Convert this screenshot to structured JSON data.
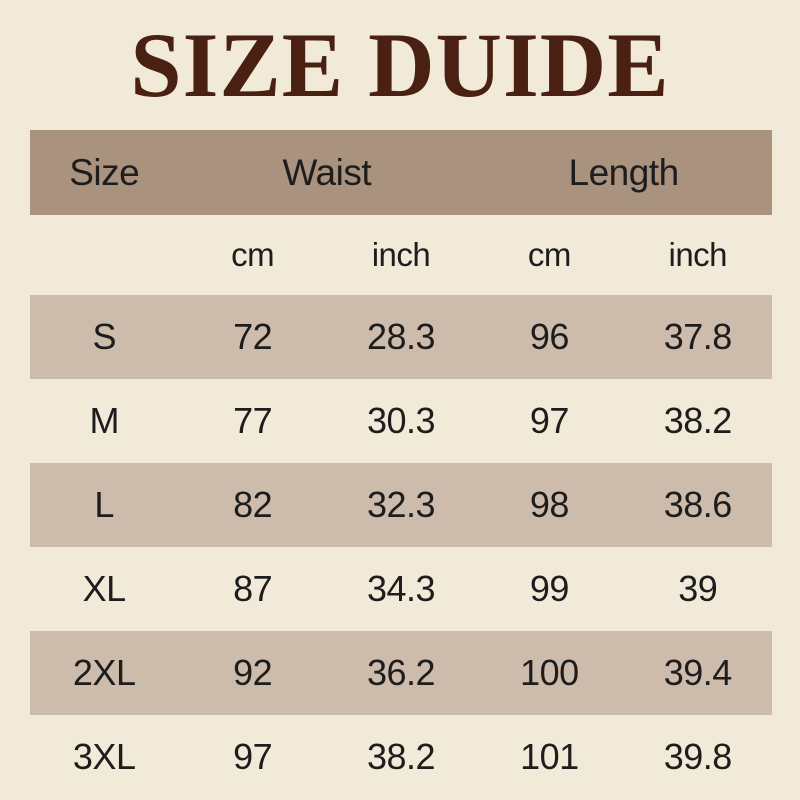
{
  "title": "SIZE DUIDE",
  "colors": {
    "page_bg": "#f2ead8",
    "header_bg": "#a9927e",
    "row_alt_bg": "#cdbcab",
    "title_color": "#4a2012",
    "text_color": "#1d1d1d"
  },
  "table": {
    "columns": {
      "size": "Size",
      "waist": "Waist",
      "length": "Length"
    },
    "units": {
      "waist_cm": "cm",
      "waist_inch": "inch",
      "length_cm": "cm",
      "length_inch": "inch"
    },
    "rows": [
      {
        "size": "S",
        "waist_cm": "72",
        "waist_inch": "28.3",
        "length_cm": "96",
        "length_inch": "37.8"
      },
      {
        "size": "M",
        "waist_cm": "77",
        "waist_inch": "30.3",
        "length_cm": "97",
        "length_inch": "38.2"
      },
      {
        "size": "L",
        "waist_cm": "82",
        "waist_inch": "32.3",
        "length_cm": "98",
        "length_inch": "38.6"
      },
      {
        "size": "XL",
        "waist_cm": "87",
        "waist_inch": "34.3",
        "length_cm": "99",
        "length_inch": "39"
      },
      {
        "size": "2XL",
        "waist_cm": "92",
        "waist_inch": "36.2",
        "length_cm": "100",
        "length_inch": "39.4"
      },
      {
        "size": "3XL",
        "waist_cm": "97",
        "waist_inch": "38.2",
        "length_cm": "101",
        "length_inch": "39.8"
      }
    ]
  },
  "chart_data": {
    "type": "table",
    "title": "SIZE DUIDE",
    "columns": [
      "Size",
      "Waist cm",
      "Waist inch",
      "Length cm",
      "Length inch"
    ],
    "rows": [
      [
        "S",
        72,
        28.3,
        96,
        37.8
      ],
      [
        "M",
        77,
        30.3,
        97,
        38.2
      ],
      [
        "L",
        82,
        32.3,
        98,
        38.6
      ],
      [
        "XL",
        87,
        34.3,
        99,
        39
      ],
      [
        "2XL",
        92,
        36.2,
        100,
        39.4
      ],
      [
        "3XL",
        97,
        38.2,
        101,
        39.8
      ]
    ]
  }
}
